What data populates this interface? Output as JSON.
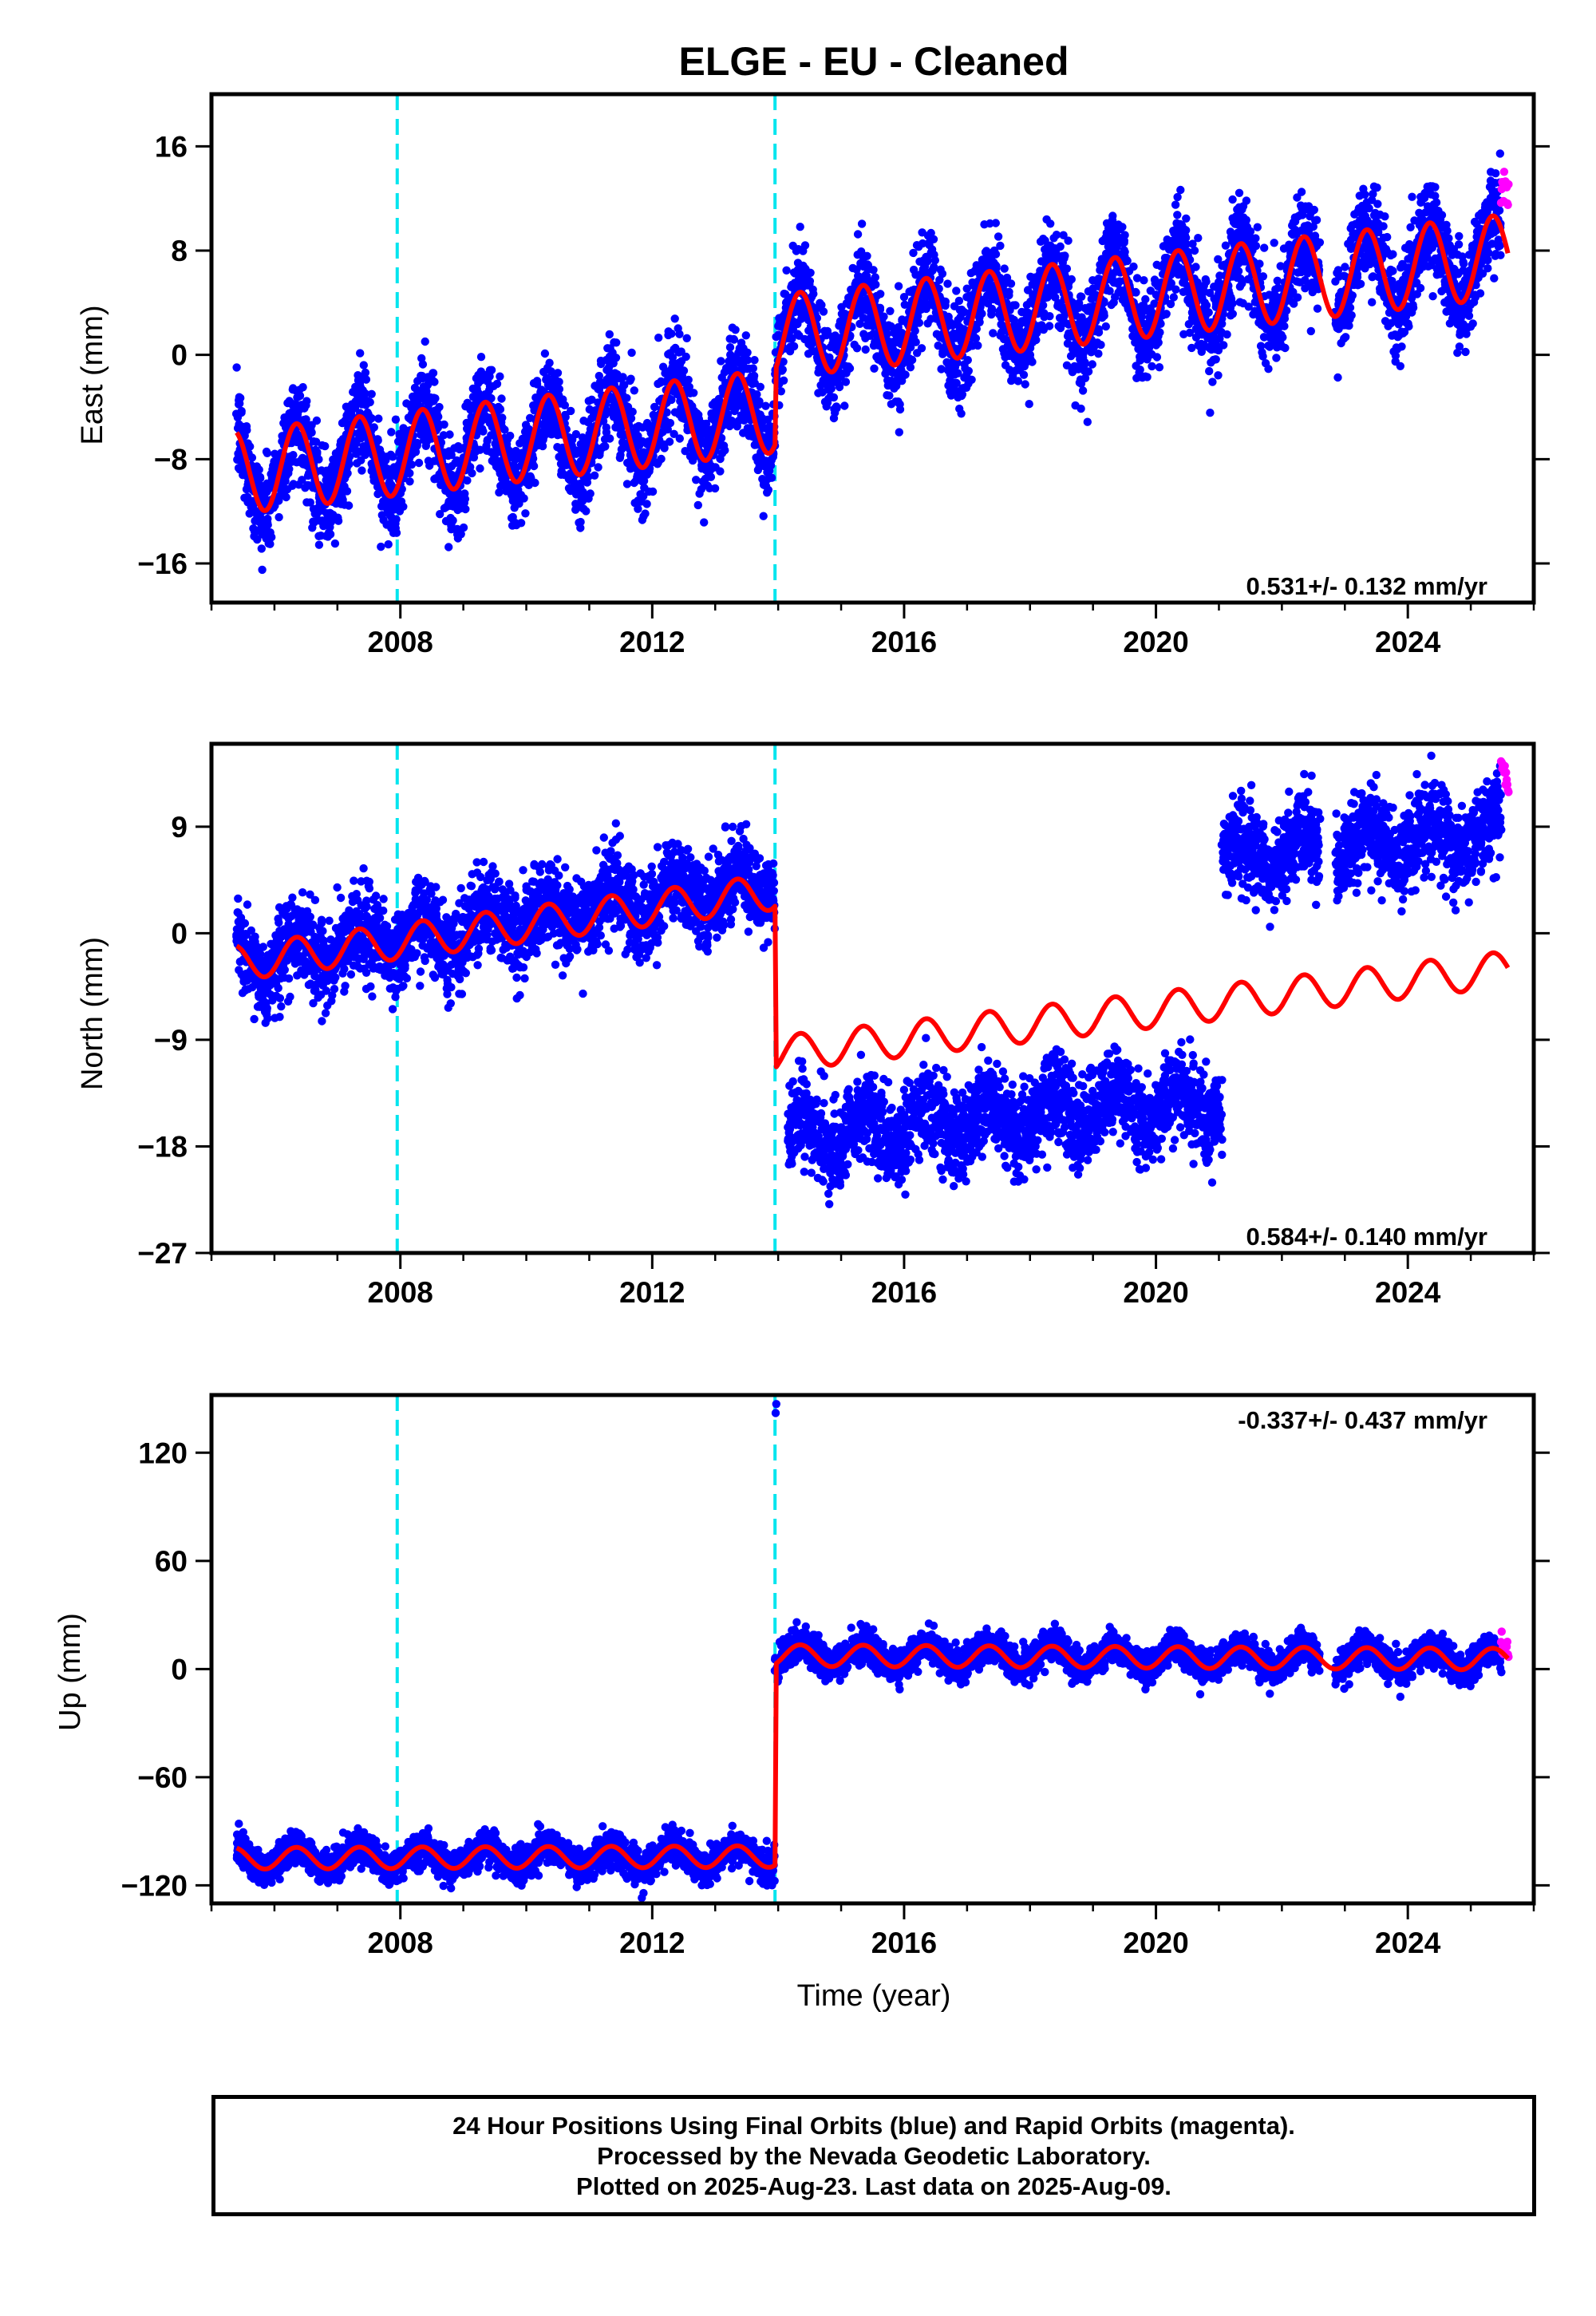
{
  "title": "ELGE  - EU - Cleaned",
  "xlabel": "Time (year)",
  "footer": [
    "24 Hour Positions Using Final Orbits (blue) and Rapid Orbits (magenta).",
    "Processed by the Nevada Geodetic Laboratory.",
    "Plotted on 2025-Aug-23. Last data on 2025-Aug-09."
  ],
  "colors": {
    "final_orbits": "#0000ff",
    "rapid_orbits": "#ff00ff",
    "model": "#ff0000",
    "equipment_change": "#00e5ee"
  },
  "chart_data": [
    {
      "type": "scatter",
      "component": "east",
      "ylabel": "East (mm)",
      "rate_label": "0.531+/- 0.132 mm/yr",
      "rate_position": "bottom-right",
      "xlim": [
        2005.0,
        2026.0
      ],
      "ylim": [
        -19,
        20
      ],
      "xticks": [
        2008,
        2012,
        2016,
        2020,
        2024
      ],
      "yticks": [
        -16,
        -8,
        0,
        8,
        16
      ],
      "equipment_changes": [
        2007.95,
        2013.95
      ],
      "data_span": [
        2005.4,
        2025.6
      ],
      "model": {
        "segments": [
          {
            "x": [
              2005.4,
              2013.95
            ],
            "y": [
              -9.0,
              -4.3
            ]
          },
          {
            "x": [
              2013.95,
              2025.6
            ],
            "y": [
              1.4,
              7.6
            ]
          }
        ],
        "seasonal_amplitude": 3.2
      },
      "scatter_sigma": 1.8,
      "gap_periods": [
        [
          2022.6,
          2022.85
        ]
      ]
    },
    {
      "type": "scatter",
      "component": "north",
      "ylabel": "North (mm)",
      "rate_label": "0.584+/- 0.140 mm/yr",
      "rate_position": "bottom-right",
      "xlim": [
        2005.0,
        2026.0
      ],
      "ylim": [
        -27,
        16
      ],
      "xticks": [
        2008,
        2012,
        2016,
        2020,
        2024
      ],
      "yticks": [
        -27,
        -18,
        -9,
        0,
        9
      ],
      "equipment_changes": [
        2007.95,
        2013.95
      ],
      "data_span": [
        2005.4,
        2025.6
      ],
      "model": {
        "segments": [
          {
            "x": [
              2005.4,
              2013.95
            ],
            "y": [
              -2.5,
              3.5
            ]
          },
          {
            "x": [
              2013.95,
              2025.6
            ],
            "y": [
              -10.2,
              -3.0
            ]
          }
        ],
        "seasonal_amplitude": 1.5
      },
      "observed_levels": [
        {
          "x": [
            2005.4,
            2013.95
          ],
          "y": [
            -2.5,
            4.5
          ]
        },
        {
          "x": [
            2014.15,
            2021.05
          ],
          "y": [
            -17.0,
            -14.0
          ]
        },
        {
          "x": [
            2021.05,
            2025.6
          ],
          "y": [
            6.5,
            8.5
          ]
        }
      ],
      "scatter_sigma": 1.8,
      "gap_periods": [
        [
          2022.6,
          2022.85
        ]
      ]
    },
    {
      "type": "scatter",
      "component": "up",
      "ylabel": "Up (mm)",
      "rate_label": "-0.337+/- 0.437 mm/yr",
      "rate_position": "top-right",
      "xlim": [
        2005.0,
        2026.0
      ],
      "ylim": [
        -130,
        152
      ],
      "xticks": [
        2008,
        2012,
        2016,
        2020,
        2024
      ],
      "yticks": [
        -120,
        -60,
        0,
        60,
        120
      ],
      "equipment_changes": [
        2007.95,
        2013.95
      ],
      "data_span": [
        2005.4,
        2025.6
      ],
      "model": {
        "segments": [
          {
            "x": [
              2005.4,
              2013.95
            ],
            "y": [
              -105,
              -104
            ]
          },
          {
            "x": [
              2013.95,
              2025.6
            ],
            "y": [
              7.5,
              5.5
            ]
          }
        ],
        "seasonal_amplitude": 6
      },
      "scatter_sigma": 4.5,
      "outliers": [
        {
          "x": 2013.96,
          "y": 142
        },
        {
          "x": 2013.97,
          "y": 147
        }
      ],
      "gap_periods": [
        [
          2022.6,
          2022.85
        ]
      ]
    }
  ]
}
